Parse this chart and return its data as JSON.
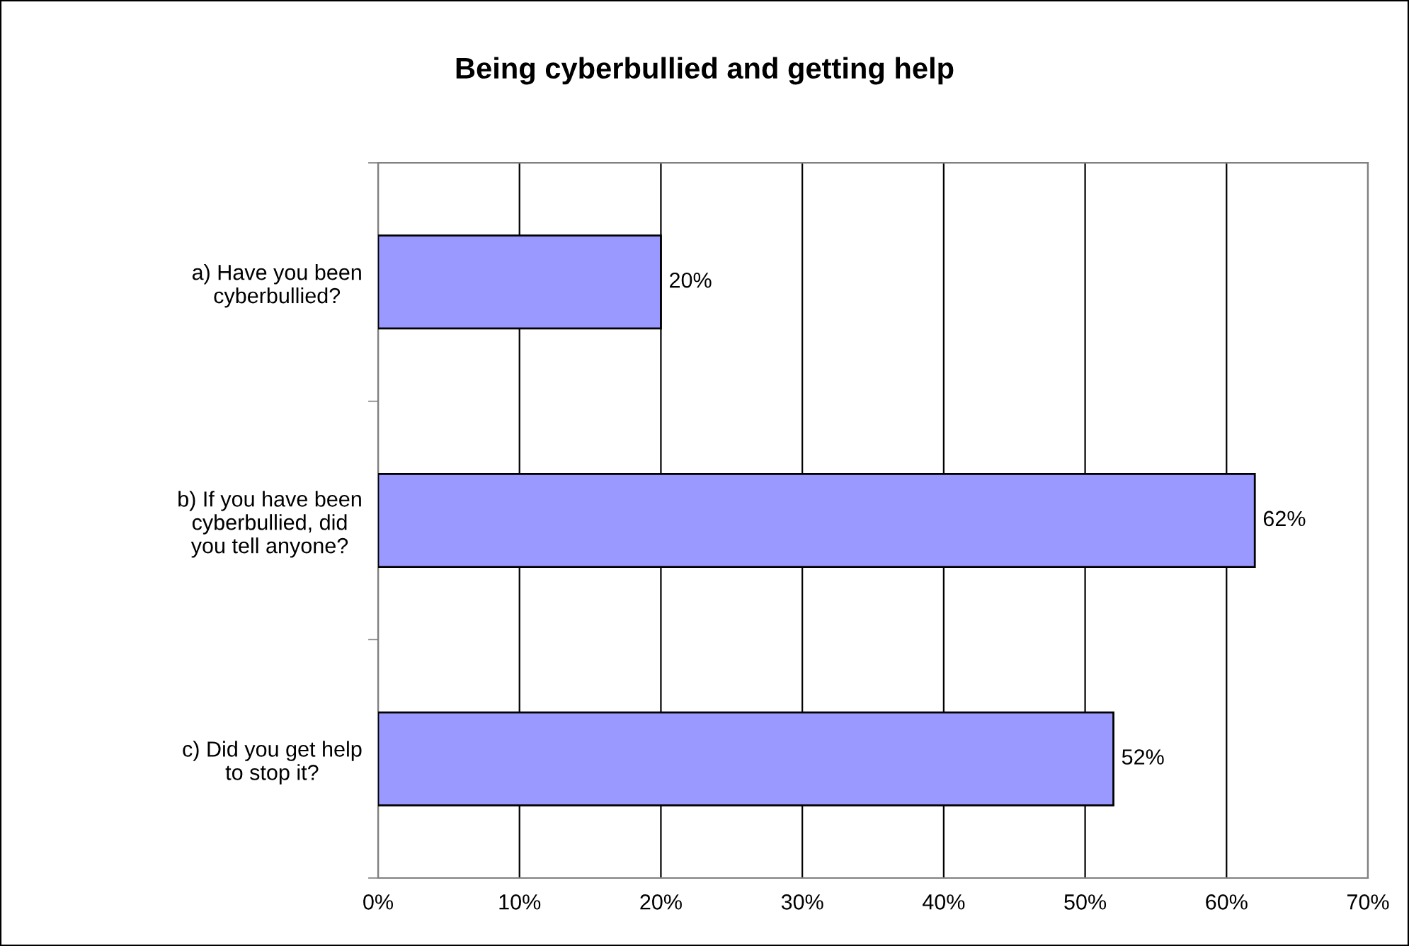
{
  "chart_data": {
    "type": "bar",
    "orientation": "horizontal",
    "title": "Being cyberbullied and getting help",
    "categories": [
      "a) Have you been\ncyberbullied?",
      "b) If you have been\ncyberbullied, did\nyou tell anyone?",
      "c) Did you get help\nto stop it?"
    ],
    "values": [
      20,
      62,
      52
    ],
    "color": "#9999ff",
    "value_labels": [
      "20%",
      "62%",
      "52%"
    ],
    "xlim": [
      0,
      70
    ],
    "xticks": [
      {
        "value": 0,
        "label": "0%"
      },
      {
        "value": 10,
        "label": "10%"
      },
      {
        "value": 20,
        "label": "20%"
      },
      {
        "value": 30,
        "label": "30%"
      },
      {
        "value": 40,
        "label": "40%"
      },
      {
        "value": 50,
        "label": "50%"
      },
      {
        "value": 60,
        "label": "60%"
      },
      {
        "value": 70,
        "label": "70%"
      }
    ],
    "grid": "x",
    "legend": false
  }
}
